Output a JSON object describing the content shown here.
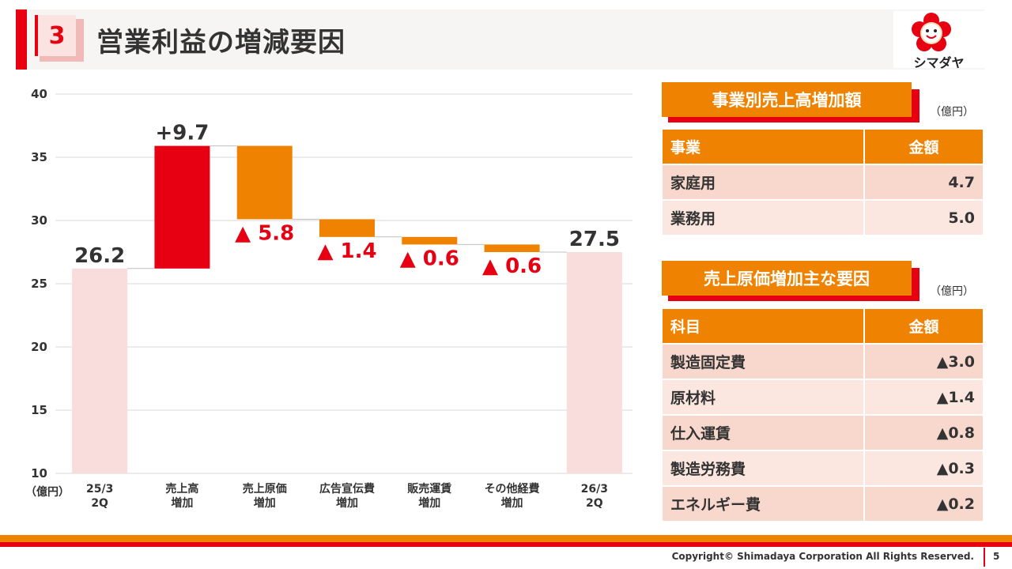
{
  "header": {
    "section_number": "3",
    "title": "営業利益の増減要因"
  },
  "logo": {
    "brand": "シマダヤ"
  },
  "chart_data": {
    "type": "waterfall",
    "y_unit_label": "（億円）",
    "ylim": [
      10,
      40
    ],
    "yticks": [
      10,
      15,
      20,
      25,
      30,
      35,
      40
    ],
    "grid": true,
    "bars": [
      {
        "category": [
          "25/3",
          "2Q"
        ],
        "kind": "total",
        "value": 26.2,
        "label": "26.2",
        "color": "#f9dcdc",
        "label_color": "#333333"
      },
      {
        "category": [
          "売上高",
          "増加"
        ],
        "kind": "increase",
        "value": 9.7,
        "label": "+9.7",
        "color": "#e60012",
        "label_color": "#333333"
      },
      {
        "category": [
          "売上原価",
          "増加"
        ],
        "kind": "decrease",
        "value": -5.8,
        "label": "▲ 5.8",
        "color": "#ef8200",
        "label_color": "#e60012"
      },
      {
        "category": [
          "広告宣伝費",
          "増加"
        ],
        "kind": "decrease",
        "value": -1.4,
        "label": "▲ 1.4",
        "color": "#ef8200",
        "label_color": "#e60012"
      },
      {
        "category": [
          "販売運賃",
          "増加"
        ],
        "kind": "decrease",
        "value": -0.6,
        "label": "▲ 0.6",
        "color": "#ef8200",
        "label_color": "#e60012"
      },
      {
        "category": [
          "その他経費",
          "増加"
        ],
        "kind": "decrease",
        "value": -0.6,
        "label": "▲ 0.6",
        "color": "#ef8200",
        "label_color": "#e60012"
      },
      {
        "category": [
          "26/3",
          "2Q"
        ],
        "kind": "total",
        "value": 27.5,
        "label": "27.5",
        "color": "#f9dcdc",
        "label_color": "#333333"
      }
    ]
  },
  "sales_table": {
    "title": "事業別売上高増加額",
    "unit": "（億円）",
    "headers": [
      "事業",
      "金額"
    ],
    "rows": [
      {
        "name": "家庭用",
        "value": "4.7"
      },
      {
        "name": "業務用",
        "value": "5.0"
      }
    ]
  },
  "cost_table": {
    "title": "売上原価増加主な要因",
    "unit": "（億円）",
    "headers": [
      "科目",
      "金額"
    ],
    "rows": [
      {
        "name": "製造固定費",
        "value": "▲3.0"
      },
      {
        "name": "原材料",
        "value": "▲1.4"
      },
      {
        "name": "仕入運賃",
        "value": "▲0.8"
      },
      {
        "name": "製造労務費",
        "value": "▲0.3"
      },
      {
        "name": "エネルギー費",
        "value": "▲0.2"
      }
    ]
  },
  "footer": {
    "copyright": "Copyright© Shimadaya Corporation All Rights Reserved.",
    "page_number": "5"
  }
}
